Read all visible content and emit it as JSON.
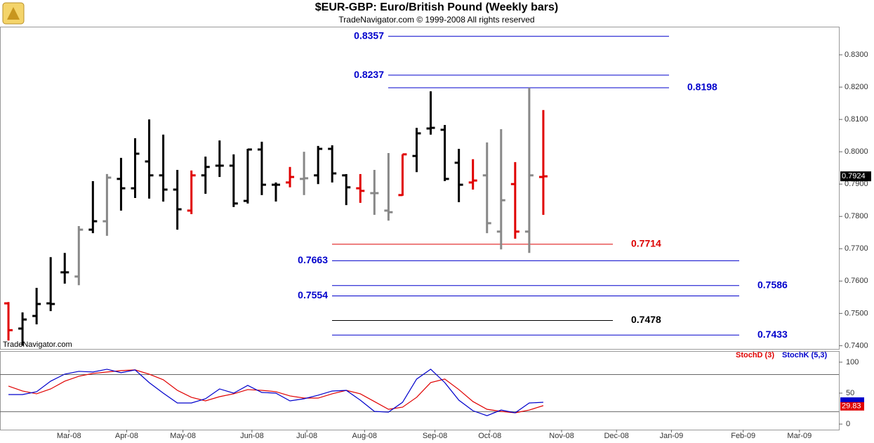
{
  "chart_data": [
    {
      "type": "ohlc",
      "title": "$EUR-GBP:  Euro/British Pound  (Weekly bars)",
      "subtitle": "TradeNavigator.com © 1999-2008 All rights reserved",
      "watermark": "TradeNavigator.com",
      "x": [
        0,
        1,
        2,
        3,
        4,
        5,
        6,
        7,
        8,
        9,
        10,
        11,
        12,
        13,
        14,
        15,
        16,
        17,
        18,
        19,
        20,
        21,
        22,
        23,
        24,
        25,
        26,
        27,
        28,
        29,
        30,
        31,
        32,
        33,
        34,
        35,
        36,
        37,
        38
      ],
      "open": [
        0.7531,
        0.7453,
        0.7492,
        0.7531,
        0.7627,
        0.7614,
        0.7759,
        0.7785,
        0.7916,
        0.7887,
        0.797,
        0.7927,
        0.7883,
        0.7818,
        0.7927,
        0.7957,
        0.7957,
        0.7848,
        0.8007,
        0.7898,
        0.7905,
        0.7916,
        0.7927,
        0.8009,
        0.7927,
        0.7887,
        0.7872,
        0.7818,
        0.7866,
        0.7987,
        0.8072,
        0.8068,
        0.7966,
        0.7905,
        0.7927,
        0.7753,
        0.79,
        0.7753,
        0.7922
      ],
      "high": [
        0.7535,
        0.7503,
        0.7579,
        0.7674,
        0.7687,
        0.777,
        0.7909,
        0.7931,
        0.7981,
        0.8042,
        0.81,
        0.8053,
        0.7944,
        0.7942,
        0.7985,
        0.8035,
        0.7992,
        0.8009,
        0.8031,
        0.7905,
        0.7953,
        0.8,
        0.8018,
        0.802,
        0.7931,
        0.7931,
        0.7944,
        0.7996,
        0.7992,
        0.8074,
        0.8187,
        0.8083,
        0.8009,
        0.7977,
        0.8029,
        0.807,
        0.7968,
        0.8198,
        0.8129
      ],
      "low": [
        0.7416,
        0.74,
        0.7466,
        0.7507,
        0.7592,
        0.7587,
        0.7748,
        0.774,
        0.7818,
        0.7857,
        0.7855,
        0.7846,
        0.7759,
        0.7807,
        0.787,
        0.7922,
        0.7829,
        0.784,
        0.7866,
        0.7846,
        0.789,
        0.7866,
        0.79,
        0.7905,
        0.7835,
        0.7842,
        0.7805,
        0.7787,
        0.7864,
        0.7937,
        0.8053,
        0.7909,
        0.7844,
        0.7883,
        0.7748,
        0.7698,
        0.7731,
        0.7687,
        0.7805
      ],
      "close": [
        0.7448,
        0.7481,
        0.7529,
        0.7529,
        0.7627,
        0.7759,
        0.7785,
        0.792,
        0.7887,
        0.7994,
        0.7927,
        0.7883,
        0.7822,
        0.7927,
        0.7953,
        0.7957,
        0.784,
        0.8007,
        0.7898,
        0.7898,
        0.7922,
        0.7918,
        0.8009,
        0.7933,
        0.789,
        0.7879,
        0.7872,
        0.7813,
        0.7992,
        0.8057,
        0.8074,
        0.7916,
        0.7898,
        0.7911,
        0.7779,
        0.785,
        0.7753,
        0.7927,
        0.7924
      ],
      "bar_colors": [
        "#e00000",
        "#000000",
        "#000000",
        "#000000",
        "#000000",
        "#888888",
        "#000000",
        "#888888",
        "#000000",
        "#000000",
        "#000000",
        "#000000",
        "#000000",
        "#e00000",
        "#000000",
        "#000000",
        "#000000",
        "#000000",
        "#000000",
        "#000000",
        "#e00000",
        "#888888",
        "#000000",
        "#000000",
        "#000000",
        "#e00000",
        "#888888",
        "#888888",
        "#e00000",
        "#000000",
        "#000000",
        "#000000",
        "#000000",
        "#e00000",
        "#888888",
        "#888888",
        "#e00000",
        "#888888",
        "#e00000"
      ],
      "xlim": [
        -0.6,
        59
      ],
      "xticks": [
        {
          "value": 4.3,
          "label": "Mar-08"
        },
        {
          "value": 8.4,
          "label": "Apr-08"
        },
        {
          "value": 12.4,
          "label": "May-08"
        },
        {
          "value": 17.3,
          "label": "Jun-08"
        },
        {
          "value": 21.2,
          "label": "Jul-08"
        },
        {
          "value": 25.3,
          "label": "Aug-08"
        },
        {
          "value": 30.3,
          "label": "Sep-08"
        },
        {
          "value": 34.2,
          "label": "Oct-08"
        },
        {
          "value": 39.3,
          "label": "Nov-08"
        },
        {
          "value": 43.2,
          "label": "Dec-08"
        },
        {
          "value": 47.1,
          "label": "Jan-09"
        },
        {
          "value": 52.2,
          "label": "Feb-09"
        },
        {
          "value": 56.2,
          "label": "Mar-09"
        }
      ],
      "ylim": [
        0.739,
        0.8387
      ],
      "yticks": [
        {
          "value": 0.74,
          "label": "0.7400"
        },
        {
          "value": 0.75,
          "label": "0.7500"
        },
        {
          "value": 0.76,
          "label": "0.7600"
        },
        {
          "value": 0.77,
          "label": "0.7700"
        },
        {
          "value": 0.78,
          "label": "0.7800"
        },
        {
          "value": 0.79,
          "label": "0.7900"
        },
        {
          "value": 0.8,
          "label": "0.8000"
        },
        {
          "value": 0.81,
          "label": "0.8100"
        },
        {
          "value": 0.82,
          "label": "0.8200"
        },
        {
          "value": 0.83,
          "label": "0.8300"
        }
      ],
      "levels": [
        {
          "value": 0.8357,
          "color": "#0000cc"
        },
        {
          "value": 0.8237,
          "color": "#0000cc"
        },
        {
          "value": 0.8198,
          "color": "#0000cc"
        },
        {
          "value": 0.7714,
          "color": "#dd0000"
        },
        {
          "value": 0.7663,
          "color": "#0000cc"
        },
        {
          "value": 0.7586,
          "color": "#0000cc"
        },
        {
          "value": 0.7554,
          "color": "#0000cc"
        },
        {
          "value": 0.7478,
          "color": "#000000"
        },
        {
          "value": 0.7433,
          "color": "#0000cc"
        }
      ]
    },
    {
      "type": "line",
      "x": [
        0,
        1,
        2,
        3,
        4,
        5,
        6,
        7,
        8,
        9,
        10,
        11,
        12,
        13,
        14,
        15,
        16,
        17,
        18,
        19,
        20,
        21,
        22,
        23,
        24,
        25,
        26,
        27,
        28,
        29,
        30,
        31,
        32,
        33,
        34,
        35,
        36,
        37,
        38
      ],
      "series": [
        {
          "name": "StochD (3)",
          "color": "#e00000",
          "values": [
            61.4,
            53.4,
            48.9,
            56.8,
            69.3,
            77.3,
            81.8,
            84.1,
            86.4,
            87.5,
            80.7,
            71.6,
            54.5,
            43.2,
            37.5,
            44.3,
            48.9,
            55.7,
            54.5,
            52.3,
            45.5,
            42.0,
            42.0,
            48.9,
            54.5,
            48.9,
            36.4,
            23.9,
            27.3,
            43.2,
            67.0,
            72.7,
            55.7,
            36.4,
            23.9,
            20.5,
            18.2,
            22.7,
            29.83
          ]
        },
        {
          "name": "StochK (5,3)",
          "color": "#0000cc",
          "values": [
            47.7,
            47.7,
            52.3,
            69.3,
            80.7,
            85.2,
            84.1,
            88.6,
            83.0,
            87.5,
            67.0,
            50.0,
            34.1,
            34.1,
            40.9,
            56.8,
            50.0,
            62.5,
            51.1,
            50.0,
            37.5,
            40.9,
            46.6,
            53.4,
            54.5,
            38.6,
            20.5,
            19.3,
            35.2,
            72.7,
            88.6,
            67.0,
            38.6,
            21.6,
            13.6,
            22.7,
            18.2,
            34.1,
            35.2
          ]
        }
      ],
      "ylim": [
        -9,
        118
      ],
      "yticks": [
        0,
        50,
        100
      ],
      "reference_lines": [
        20,
        80
      ]
    }
  ]
}
